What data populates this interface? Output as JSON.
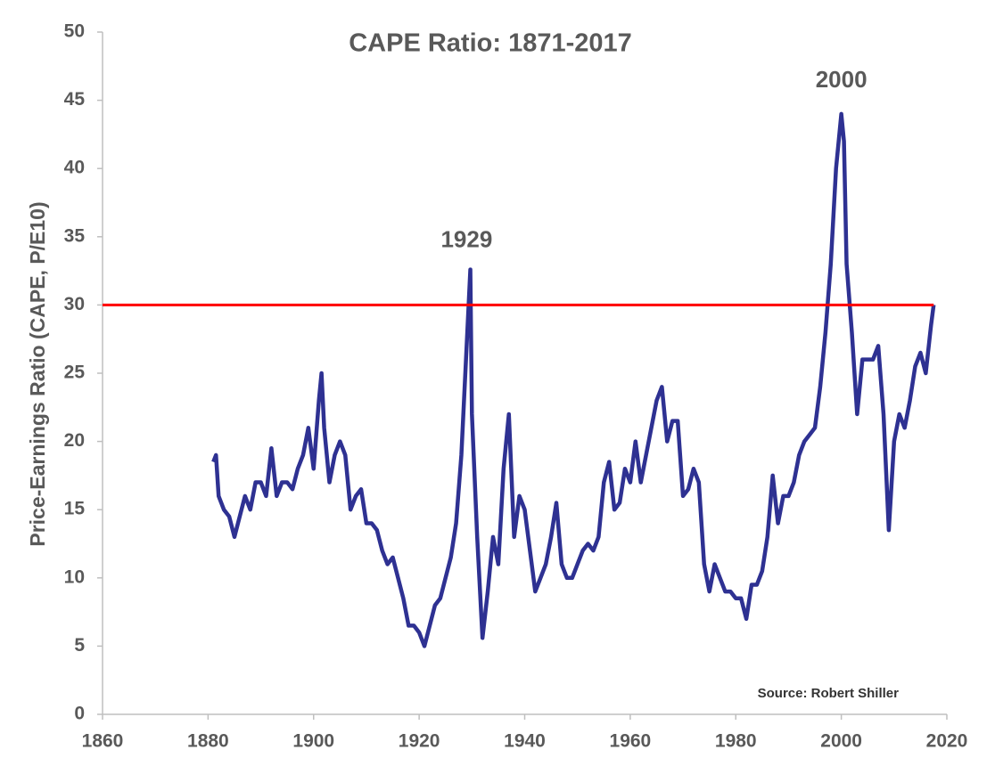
{
  "chart_data": {
    "type": "line",
    "title": "CAPE Ratio: 1871-2017",
    "y_label": "Price-Earnings Ratio (CAPE, P/E10)",
    "source": "Source: Robert Shiller",
    "xlim": [
      1860,
      2020
    ],
    "xticks": [
      1860,
      1880,
      1900,
      1920,
      1940,
      1960,
      1980,
      2000,
      2020
    ],
    "ylim": [
      0,
      50
    ],
    "yticks": [
      0,
      5,
      10,
      15,
      20,
      25,
      30,
      35,
      40,
      45,
      50
    ],
    "reference_line": {
      "value": 30,
      "color": "#ff0000"
    },
    "annotations": [
      {
        "text": "1929",
        "x": 1929,
        "y": 34.7
      },
      {
        "text": "2000",
        "x": 2000,
        "y": 46.4
      }
    ],
    "x": [
      1881,
      1881.5,
      1882,
      1883,
      1884,
      1885,
      1886,
      1887,
      1888,
      1889,
      1890,
      1891,
      1892,
      1893,
      1894,
      1895,
      1896,
      1897,
      1898,
      1899,
      1900,
      1901,
      1901.5,
      1902,
      1903,
      1904,
      1905,
      1906,
      1907,
      1908,
      1909,
      1910,
      1911,
      1912,
      1913,
      1914,
      1915,
      1916,
      1917,
      1918,
      1919,
      1920,
      1921,
      1922,
      1923,
      1924,
      1925,
      1926,
      1927,
      1928,
      1929,
      1929.7,
      1930,
      1931,
      1932,
      1933,
      1934,
      1935,
      1936,
      1937,
      1938,
      1939,
      1940,
      1941,
      1942,
      1943,
      1944,
      1945,
      1946,
      1947,
      1948,
      1949,
      1950,
      1951,
      1952,
      1953,
      1954,
      1955,
      1956,
      1957,
      1958,
      1959,
      1960,
      1961,
      1962,
      1963,
      1964,
      1965,
      1966,
      1967,
      1968,
      1969,
      1970,
      1971,
      1972,
      1973,
      1974,
      1975,
      1976,
      1977,
      1978,
      1979,
      1980,
      1981,
      1982,
      1983,
      1984,
      1985,
      1986,
      1987,
      1988,
      1989,
      1990,
      1991,
      1992,
      1993,
      1994,
      1995,
      1996,
      1997,
      1998,
      1999,
      2000,
      2000.5,
      2001,
      2002,
      2003,
      2004,
      2005,
      2006,
      2007,
      2008,
      2009,
      2010,
      2011,
      2012,
      2013,
      2014,
      2015,
      2016,
      2017,
      2017.5
    ],
    "series": [
      {
        "name": "CAPE",
        "color": "#2e3192",
        "values": [
          18.5,
          19,
          16,
          15,
          14.5,
          13,
          14.5,
          16,
          15,
          17,
          17,
          16,
          19.5,
          16,
          17,
          17,
          16.5,
          18,
          19,
          21,
          18,
          23,
          25,
          21,
          17,
          19,
          20,
          19,
          15,
          16,
          16.5,
          14,
          14,
          13.5,
          12,
          11,
          11.5,
          10,
          8.5,
          6.5,
          6.5,
          6,
          5,
          6.5,
          8,
          8.5,
          10,
          11.5,
          14,
          19,
          27,
          32.6,
          22,
          13,
          5.6,
          9,
          13,
          11,
          18,
          22,
          13,
          16,
          15,
          12,
          9,
          10,
          11,
          13,
          15.5,
          11,
          10,
          10,
          11,
          12,
          12.5,
          12,
          13,
          17,
          18.5,
          15,
          15.5,
          18,
          17,
          20,
          17,
          19,
          21,
          23,
          24,
          20,
          21.5,
          21.5,
          16,
          16.5,
          18,
          17,
          11,
          9,
          11,
          10,
          9,
          9,
          8.5,
          8.5,
          7,
          9.5,
          9.5,
          10.5,
          13,
          17.5,
          14,
          16,
          16,
          17,
          19,
          20,
          20.5,
          21,
          24,
          28,
          33,
          40,
          44,
          42,
          33,
          28,
          22,
          26,
          26,
          26,
          27,
          22,
          13.5,
          20,
          22,
          21,
          23,
          25.5,
          26.5,
          25,
          28.5,
          30
        ]
      }
    ]
  }
}
